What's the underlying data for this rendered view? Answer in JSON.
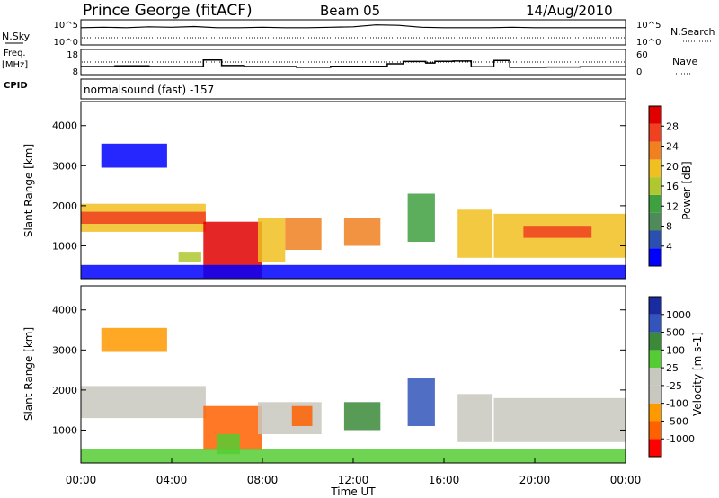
{
  "header": {
    "station": "Prince George (fitACF)",
    "beam": "Beam 05",
    "date": "14/Aug/2010"
  },
  "side_labels": {
    "nsky": "N.Sky",
    "freq_line1": "Freq.",
    "freq_line2": "[MHz]",
    "cpid": "CPID",
    "nsearch": "N.Search",
    "nave": "Nave"
  },
  "mode_text": "normalsound (fast) -157",
  "colors": {
    "power": [
      "#0000ff",
      "#2a4fb0",
      "#4e8a5a",
      "#3fa040",
      "#b0c830",
      "#f0c020",
      "#f08020",
      "#f04020",
      "#e00000"
    ],
    "velocity": [
      "#ff0000",
      "#ff6000",
      "#ff9900",
      "#c8c8c0",
      "#c8c8c0",
      "#55cc33",
      "#3a8a3a",
      "#3355bb",
      "#1a2aa0"
    ]
  },
  "chart_data": [
    {
      "type": "line",
      "title": "N.Sky / N.Search",
      "x_range_hours": [
        0,
        24
      ],
      "left_ticks": [
        "10^5",
        "10^0"
      ],
      "right_ticks": [
        "10^5",
        "10^0"
      ],
      "series": [
        {
          "name": "N.Sky",
          "style": "solid"
        },
        {
          "name": "N.Search",
          "style": "dotted"
        }
      ],
      "x": [
        0,
        1,
        2,
        3,
        4,
        5,
        6,
        7,
        8,
        9,
        10,
        11,
        12,
        13,
        14,
        15,
        16,
        17,
        18,
        19,
        20,
        21,
        22,
        23,
        24
      ],
      "nsky_relative_level": [
        0.7,
        0.72,
        0.7,
        0.74,
        0.72,
        0.75,
        0.7,
        0.7,
        0.72,
        0.7,
        0.7,
        0.72,
        0.74,
        0.82,
        0.8,
        0.72,
        0.7,
        0.7,
        0.7,
        0.72,
        0.7,
        0.7,
        0.7,
        0.7,
        0.7
      ]
    },
    {
      "type": "line",
      "title": "Freq. / Nave",
      "left_ticks": [
        "18",
        "8"
      ],
      "right_ticks": [
        "60",
        "0"
      ],
      "series": [
        {
          "name": "Freq. [MHz]",
          "style": "solid"
        },
        {
          "name": "Nave",
          "style": "dotted"
        }
      ],
      "freq_steps": [
        [
          0,
          11.2
        ],
        [
          1.5,
          11.5
        ],
        [
          3,
          11.2
        ],
        [
          4.5,
          11.2
        ],
        [
          5.4,
          13.8
        ],
        [
          6.2,
          11.6
        ],
        [
          7.2,
          11.2
        ],
        [
          9.5,
          10.9
        ],
        [
          11,
          11.3
        ],
        [
          13.5,
          12.3
        ],
        [
          14.2,
          13.2
        ],
        [
          15.2,
          12.6
        ],
        [
          15.6,
          13.3
        ],
        [
          16.4,
          13.4
        ],
        [
          17.2,
          11.1
        ],
        [
          18.2,
          13.6
        ],
        [
          18.9,
          10.9
        ],
        [
          20.5,
          11.0
        ],
        [
          22,
          11.1
        ],
        [
          24,
          11.1
        ]
      ],
      "nave_level": 30
    },
    {
      "type": "heatmap",
      "title": "Power [dB]",
      "ylabel": "Slant Range [km]",
      "yticks": [
        "4000",
        "3000",
        "2000",
        "1000"
      ],
      "colorbar_label": "Power [dB]",
      "colorbar_ticks": [
        "28",
        "24",
        "20",
        "16",
        "12",
        "8",
        "4"
      ],
      "ylim_km": [
        180,
        4600
      ],
      "xlim_hours": [
        0,
        24
      ],
      "echo_regions": [
        {
          "t0": 0.0,
          "t1": 5.5,
          "r0": 1350,
          "r1": 2050,
          "level": 5
        },
        {
          "t0": 0.0,
          "t1": 5.5,
          "r0": 1550,
          "r1": 1850,
          "level": 7
        },
        {
          "t0": 0.9,
          "t1": 3.8,
          "r0": 2950,
          "r1": 3550,
          "level": 0
        },
        {
          "t0": 4.3,
          "t1": 5.3,
          "r0": 600,
          "r1": 850,
          "level": 4
        },
        {
          "t0": 5.4,
          "t1": 8.0,
          "r0": 200,
          "r1": 1600,
          "level": 8
        },
        {
          "t0": 7.8,
          "t1": 9.0,
          "r0": 600,
          "r1": 1700,
          "level": 5
        },
        {
          "t0": 9.0,
          "t1": 10.6,
          "r0": 900,
          "r1": 1700,
          "level": 6
        },
        {
          "t0": 11.6,
          "t1": 13.2,
          "r0": 1000,
          "r1": 1700,
          "level": 6
        },
        {
          "t0": 14.4,
          "t1": 15.6,
          "r0": 1100,
          "r1": 2300,
          "level": 3
        },
        {
          "t0": 16.6,
          "t1": 18.1,
          "r0": 700,
          "r1": 1900,
          "level": 5
        },
        {
          "t0": 18.2,
          "t1": 24.0,
          "r0": 700,
          "r1": 1800,
          "level": 5
        },
        {
          "t0": 19.5,
          "t1": 22.5,
          "r0": 1200,
          "r1": 1500,
          "level": 7
        },
        {
          "t0": 0.0,
          "t1": 24.0,
          "r0": 190,
          "r1": 520,
          "level": 0
        }
      ]
    },
    {
      "type": "heatmap",
      "title": "Velocity [m s-1]",
      "ylabel": "Slant Range [km]",
      "xlabel": "Time UT",
      "yticks": [
        "4000",
        "3000",
        "2000",
        "1000"
      ],
      "xticks": [
        "00:00",
        "04:00",
        "08:00",
        "12:00",
        "16:00",
        "20:00",
        "00:00"
      ],
      "colorbar_label": "Velocity [m s-1]",
      "colorbar_ticks": [
        "1000",
        "500",
        "100",
        "25",
        "-25",
        "-100",
        "-500",
        "-1000"
      ],
      "ylim_km": [
        180,
        4600
      ],
      "xlim_hours": [
        0,
        24
      ],
      "echo_regions": [
        {
          "t0": 0.0,
          "t1": 5.5,
          "r0": 1300,
          "r1": 2100,
          "level": 3
        },
        {
          "t0": 0.9,
          "t1": 3.8,
          "r0": 2950,
          "r1": 3550,
          "level": 2
        },
        {
          "t0": 5.4,
          "t1": 8.0,
          "r0": 500,
          "r1": 1600,
          "level": 1
        },
        {
          "t0": 6.0,
          "t1": 7.0,
          "r0": 400,
          "r1": 900,
          "level": 5
        },
        {
          "t0": 7.8,
          "t1": 10.6,
          "r0": 900,
          "r1": 1700,
          "level": 3
        },
        {
          "t0": 9.3,
          "t1": 10.2,
          "r0": 1100,
          "r1": 1600,
          "level": 1
        },
        {
          "t0": 11.6,
          "t1": 13.2,
          "r0": 1000,
          "r1": 1700,
          "level": 6
        },
        {
          "t0": 14.4,
          "t1": 15.6,
          "r0": 1100,
          "r1": 2300,
          "level": 7
        },
        {
          "t0": 16.6,
          "t1": 18.1,
          "r0": 700,
          "r1": 1900,
          "level": 3
        },
        {
          "t0": 18.2,
          "t1": 24.0,
          "r0": 700,
          "r1": 1800,
          "level": 3
        },
        {
          "t0": 0.0,
          "t1": 24.0,
          "r0": 190,
          "r1": 520,
          "level": 5
        }
      ]
    }
  ]
}
